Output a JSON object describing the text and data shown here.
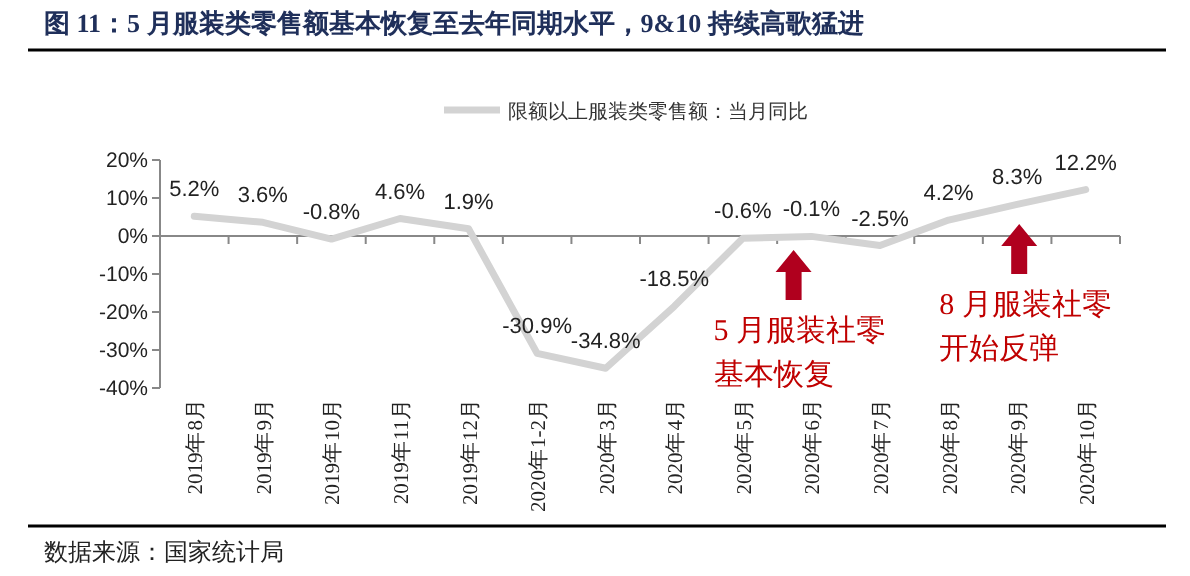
{
  "chart_data": {
    "type": "line",
    "title": "图 11：5 月服装类零售额基本恢复至去年同期水平，9&10 持续高歌猛进",
    "categories": [
      "2019年8月",
      "2019年9月",
      "2019年10月",
      "2019年11月",
      "2019年12月",
      "2020年1-2月",
      "2020年3月",
      "2020年4月",
      "2020年5月",
      "2020年6月",
      "2020年7月",
      "2020年8月",
      "2020年9月",
      "2020年10月"
    ],
    "series": [
      {
        "name": "限额以上服装类零售额：当月同比",
        "color": "#d3d3d3",
        "values": [
          5.2,
          3.6,
          -0.8,
          4.6,
          1.9,
          -30.9,
          -34.8,
          -18.5,
          -0.6,
          -0.1,
          -2.5,
          4.2,
          8.3,
          12.2
        ],
        "value_labels": [
          "5.2%",
          "3.6%",
          "-0.8%",
          "4.6%",
          "1.9%",
          "-30.9%",
          "-34.8%",
          "-18.5%",
          "-0.6%",
          "-0.1%",
          "-2.5%",
          "4.2%",
          "8.3%",
          "12.2%"
        ]
      }
    ],
    "ylim": [
      -40,
      20
    ],
    "yticks": [
      {
        "value": 20,
        "label": "20%"
      },
      {
        "value": 10,
        "label": "10%"
      },
      {
        "value": 0,
        "label": "0%"
      },
      {
        "value": -10,
        "label": "-10%"
      },
      {
        "value": -20,
        "label": "-20%"
      },
      {
        "value": -30,
        "label": "-30%"
      },
      {
        "value": -40,
        "label": "-40%"
      }
    ],
    "legend": "top",
    "annotations": [
      "5 月服装社零基本恢复",
      "8 月服装社零开始反弹",
      "数据来源：国家统计局"
    ]
  }
}
